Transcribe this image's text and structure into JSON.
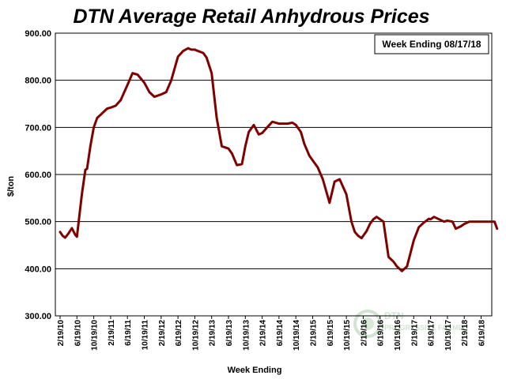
{
  "chart_data": {
    "type": "line",
    "title": "DTN Average Retail Anhydrous Prices",
    "xlabel": "Week Ending",
    "ylabel": "$/ton",
    "annotation": "Week Ending 08/17/18",
    "ylim": [
      300,
      900
    ],
    "yticks": [
      "300.00",
      "400.00",
      "500.00",
      "600.00",
      "700.00",
      "800.00",
      "900.00"
    ],
    "xticks": [
      "2/19/10",
      "6/19/10",
      "10/19/10",
      "2/19/11",
      "6/19/11",
      "10/19/11",
      "2/19/12",
      "6/19/12",
      "10/19/12",
      "2/19/13",
      "6/19/13",
      "10/19/13",
      "2/19/14",
      "6/19/14",
      "10/19/14",
      "2/19/15",
      "6/19/15",
      "10/19/15",
      "2/19/16",
      "6/19/16",
      "10/19/16",
      "2/19/17",
      "6/19/17",
      "10/19/17",
      "2/19/18",
      "6/19/18"
    ],
    "grid": "horizontal",
    "colors": {
      "line": "#800000"
    },
    "series": [
      {
        "x": [
          0,
          0.15,
          0.3,
          0.5,
          0.7,
          0.9,
          1.0,
          1.3,
          1.5,
          1.6,
          1.8,
          2.0,
          2.2,
          2.5,
          2.8,
          3.0,
          3.3,
          3.6,
          4.0,
          4.3,
          4.6,
          5.0,
          5.3,
          5.6,
          6.0,
          6.3,
          6.6,
          7.0,
          7.3,
          7.6,
          7.8,
          8.0,
          8.2,
          8.5,
          8.7,
          9.0,
          9.3,
          9.6,
          10.0,
          10.2,
          10.5,
          10.8,
          11.0,
          11.2,
          11.5,
          11.8,
          12.0,
          12.3,
          12.6,
          13.0,
          13.3,
          13.5,
          13.8,
          14.0,
          14.3,
          14.5,
          14.8,
          15.0,
          15.3,
          15.6,
          16.0,
          16.3,
          16.6,
          17.0,
          17.3,
          17.5,
          17.7,
          17.9,
          18.0,
          18.2,
          18.4,
          18.6,
          18.8,
          19.0,
          19.2,
          19.5,
          19.8,
          20.0,
          20.3,
          20.6,
          21.0,
          21.3,
          21.6,
          21.9,
          22.0,
          22.2,
          22.5,
          22.8,
          23.0,
          23.3,
          23.5,
          23.8,
          24.0,
          24.3,
          24.6,
          24.8,
          25.0,
          25.3,
          25.6,
          25.8,
          25.95
        ],
        "values": [
          478,
          470,
          466,
          475,
          486,
          472,
          468,
          560,
          610,
          612,
          660,
          700,
          720,
          730,
          740,
          742,
          746,
          758,
          790,
          815,
          812,
          795,
          775,
          765,
          770,
          775,
          800,
          850,
          862,
          868,
          865,
          865,
          862,
          858,
          848,
          815,
          720,
          660,
          655,
          645,
          620,
          622,
          660,
          690,
          705,
          685,
          688,
          700,
          712,
          708,
          708,
          708,
          710,
          705,
          690,
          665,
          640,
          630,
          615,
          590,
          540,
          585,
          590,
          558,
          500,
          478,
          470,
          465,
          470,
          480,
          495,
          505,
          510,
          505,
          500,
          425,
          415,
          405,
          395,
          405,
          460,
          488,
          498,
          506,
          505,
          510,
          505,
          500,
          502,
          500,
          485,
          490,
          495,
          500,
          500,
          500,
          500,
          500,
          500,
          500,
          485
        ]
      }
    ]
  },
  "watermark": {
    "text": "DTN PROGRESSIVE FARMER"
  }
}
